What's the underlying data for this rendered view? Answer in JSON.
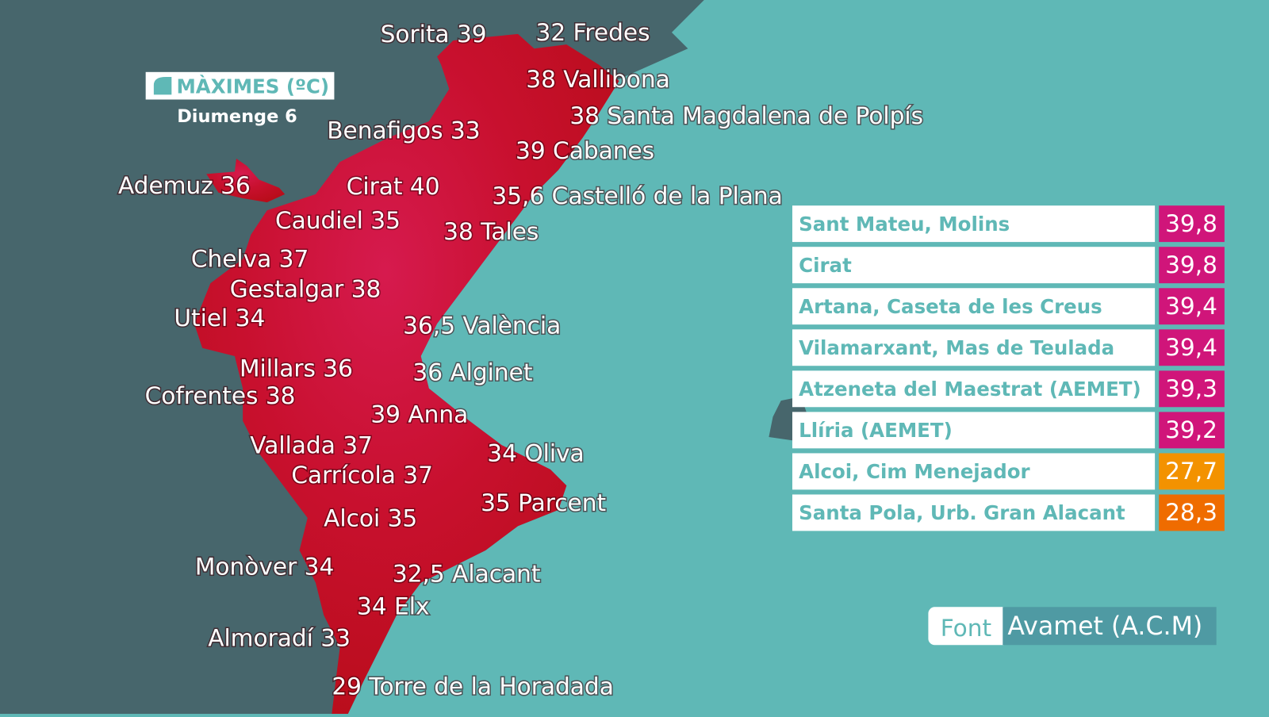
{
  "header": {
    "title": "MÀXIMES (ºC)",
    "subtitle": "Diumenge 6"
  },
  "map_labels": [
    "Sorita 39",
    "32 Fredes",
    "38 Vallibona",
    "38 Santa Magdalena de Polpís",
    "Benafigos 33",
    "39 Cabanes",
    "Ademuz 36",
    "Cirat 40",
    "35,6 Castelló de la Plana",
    "Caudiel 35",
    "38 Tales",
    "Chelva 37",
    "Gestalgar 38",
    "Utiel 34",
    "36,5 València",
    "Millars 36",
    "36 Alginet",
    "Cofrentes 38",
    "39 Anna",
    "Vallada 37",
    "34 Oliva",
    "Carrícola 37",
    "35 Parcent",
    "Alcoi 35",
    "Monòver 34",
    "32,5 Alacant",
    "34 Elx",
    "Almoradí 33",
    "29 Torre de la Horadada"
  ],
  "table": {
    "rows": [
      {
        "name": "Sant Mateu, Molins",
        "value": "39,8",
        "color": "#d0157a"
      },
      {
        "name": "Cirat",
        "value": "39,8",
        "color": "#d0157a"
      },
      {
        "name": "Artana, Caseta de les Creus",
        "value": "39,4",
        "color": "#d0157a"
      },
      {
        "name": "Vilamarxant, Mas de Teulada",
        "value": "39,4",
        "color": "#d0157a"
      },
      {
        "name": "Atzeneta del Maestrat (AEMET)",
        "value": "39,3",
        "color": "#d0157a"
      },
      {
        "name": "Llíria (AEMET)",
        "value": "39,2",
        "color": "#d0157a"
      },
      {
        "name": "Alcoi, Cim Menejador",
        "value": "27,7",
        "color": "#f39200"
      },
      {
        "name": "Santa Pola, Urb. Gran Alacant",
        "value": "28,3",
        "color": "#ef6c00"
      }
    ]
  },
  "source": {
    "label": "Font",
    "name": "Avamet (A.C.M)"
  }
}
